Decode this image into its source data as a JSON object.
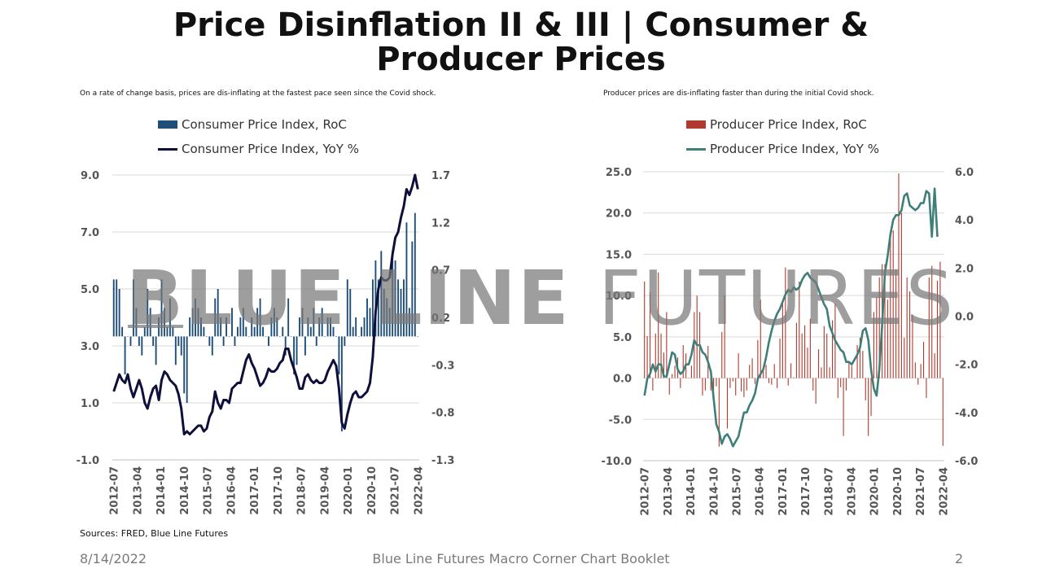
{
  "slide": {
    "title": "Price Disinflation II & III | Consumer & Producer Prices",
    "sources": "Sources: FRED, Blue Line Futures",
    "footer_date": "8/14/2022",
    "footer_center": "Blue Line Futures Macro Corner Chart Booklet",
    "page_number": "2",
    "watermark_bold": "BLUE LINE",
    "watermark_light": "FUTURES",
    "note_left": "On a rate of change basis, prices are dis-inflating at the fastest pace seen since the Covid shock.",
    "note_right": "Producer prices are dis-inflating faster than during the initial Covid shock."
  },
  "chart_data": [
    {
      "type": "bar+line",
      "legend": [
        "Consumer Price Index, RoC",
        "Consumer Price Index, YoY %"
      ],
      "colors": {
        "bar": "#1f4e79",
        "line": "#0f0f3c"
      },
      "left_axis": {
        "min": -1,
        "max": 9,
        "ticks": [
          "9.0",
          "7.0",
          "5.0",
          "3.0",
          "1.0",
          "-1.0"
        ],
        "series": "line"
      },
      "right_axis": {
        "min": -1.3,
        "max": 1.7,
        "ticks": [
          "1.7",
          "1.2",
          "0.7",
          "0.2",
          "-0.3",
          "-0.8",
          "-1.3"
        ],
        "series": "bar"
      },
      "x_labels": [
        "2012-07",
        "2013-04",
        "2014-01",
        "2014-10",
        "2015-07",
        "2016-04",
        "2017-01",
        "2017-10",
        "2018-07",
        "2019-04",
        "2020-01",
        "2020-10",
        "2021-07",
        "2022-04"
      ],
      "line_yoy": [
        1.4,
        1.7,
        2.0,
        1.8,
        1.7,
        2.0,
        1.5,
        1.2,
        1.5,
        1.8,
        1.5,
        1.0,
        0.8,
        1.2,
        1.5,
        1.6,
        1.1,
        1.8,
        2.1,
        2.0,
        1.8,
        1.7,
        1.6,
        1.3,
        0.8,
        -0.1,
        0.0,
        -0.1,
        0.0,
        0.1,
        0.2,
        0.2,
        0.0,
        0.1,
        0.5,
        0.7,
        1.4,
        1.0,
        0.8,
        1.1,
        1.1,
        1.0,
        1.5,
        1.6,
        1.7,
        1.7,
        2.1,
        2.5,
        2.7,
        2.4,
        2.2,
        1.9,
        1.6,
        1.7,
        1.9,
        2.2,
        2.1,
        2.1,
        2.2,
        2.4,
        2.5,
        2.9,
        2.9,
        2.5,
        2.2,
        1.9,
        1.5,
        1.5,
        1.9,
        2.0,
        1.8,
        1.7,
        1.8,
        1.7,
        1.7,
        1.8,
        2.1,
        2.3,
        2.5,
        2.3,
        1.5,
        0.3,
        0.1,
        0.6,
        1.0,
        1.3,
        1.4,
        1.2,
        1.2,
        1.3,
        1.4,
        1.7,
        2.6,
        4.2,
        5.0,
        5.4,
        5.3,
        5.3,
        5.4,
        6.2,
        6.8,
        7.0,
        7.5,
        7.9,
        8.5,
        8.3,
        8.6,
        9.0,
        8.5
      ],
      "bar_roc": [
        0.6,
        0.6,
        0.5,
        0.1,
        -0.4,
        0.0,
        -0.1,
        0.6,
        0.3,
        -0.1,
        -0.2,
        0.1,
        0.5,
        0.3,
        -0.1,
        -0.3,
        0.2,
        0.6,
        0.3,
        0.1,
        0.4,
        0.1,
        -0.3,
        -0.1,
        -0.2,
        -0.6,
        -0.7,
        0.2,
        0.3,
        0.4,
        0.3,
        0.2,
        0.1,
        0.0,
        -0.1,
        -0.2,
        0.4,
        0.5,
        0.2,
        -0.1,
        0.2,
        0.0,
        0.3,
        -0.1,
        0.1,
        0.2,
        0.3,
        0.1,
        0.0,
        0.2,
        0.1,
        0.3,
        0.4,
        0.1,
        0.0,
        -0.1,
        0.2,
        0.3,
        0.2,
        0.0,
        0.1,
        -0.2,
        0.4,
        0.0,
        -0.4,
        -0.3,
        0.2,
        0.3,
        -0.2,
        0.2,
        0.1,
        0.3,
        -0.1,
        0.2,
        0.3,
        0.0,
        0.2,
        0.2,
        0.1,
        0.0,
        -0.4,
        -1.0,
        -0.1,
        0.6,
        0.5,
        0.1,
        0.2,
        0.0,
        0.1,
        0.2,
        0.4,
        0.3,
        0.6,
        0.8,
        0.6,
        0.9,
        0.5,
        0.4,
        0.3,
        0.9,
        0.8,
        0.6,
        0.5,
        0.6,
        1.2,
        0.3,
        1.0,
        1.3,
        0.0
      ]
    },
    {
      "type": "bar+line",
      "legend": [
        "Producer Price Index, RoC",
        "Producer Price Index, YoY %"
      ],
      "colors": {
        "bar": "#b03a2e",
        "line": "#3f7f79"
      },
      "left_axis": {
        "min": -10,
        "max": 25,
        "ticks": [
          "25.0",
          "20.0",
          "15.0",
          "10.0",
          "5.0",
          "0.0",
          "-5.0",
          "-10.0"
        ],
        "series": "bar"
      },
      "right_axis": {
        "min": -6,
        "max": 6,
        "ticks": [
          "6.0",
          "4.0",
          "2.0",
          "0.0",
          "-2.0",
          "-4.0",
          "-6.0"
        ],
        "series": "line"
      },
      "x_labels": [
        "2012-07",
        "2013-04",
        "2014-01",
        "2014-10",
        "2015-07",
        "2016-04",
        "2017-01",
        "2017-10",
        "2018-07",
        "2019-04",
        "2020-01",
        "2020-10",
        "2021-07",
        "2022-04"
      ],
      "line_yoy": [
        -3.3,
        -2.6,
        -2.4,
        -2.0,
        -2.3,
        -2.0,
        -2.0,
        -2.5,
        -2.5,
        -2.0,
        -1.5,
        -1.6,
        -2.2,
        -2.4,
        -2.3,
        -2.0,
        -2.0,
        -1.6,
        -1.0,
        -1.2,
        -1.2,
        -1.5,
        -1.6,
        -1.9,
        -2.3,
        -3.4,
        -4.5,
        -4.8,
        -5.3,
        -5.0,
        -4.9,
        -5.1,
        -5.4,
        -5.2,
        -5.0,
        -4.5,
        -4.0,
        -4.0,
        -3.7,
        -3.5,
        -3.2,
        -2.6,
        -2.4,
        -2.2,
        -1.7,
        -1.1,
        -0.6,
        -0.2,
        0.1,
        0.3,
        0.6,
        0.9,
        1.1,
        1.0,
        1.2,
        1.1,
        1.2,
        1.5,
        1.7,
        1.8,
        1.6,
        1.5,
        1.4,
        1.1,
        0.8,
        0.5,
        0.3,
        -0.4,
        -0.7,
        -1.0,
        -1.2,
        -1.4,
        -1.5,
        -1.9,
        -1.9,
        -2.0,
        -1.8,
        -1.6,
        -1.3,
        -0.6,
        -0.5,
        -1.0,
        -2.2,
        -3.0,
        -3.3,
        -2.2,
        -0.4,
        1.8,
        2.5,
        3.4,
        4.0,
        4.2,
        4.2,
        4.4,
        5.0,
        5.1,
        4.6,
        4.5,
        4.4,
        4.5,
        4.7,
        4.7,
        5.2,
        5.1,
        3.3,
        5.3,
        3.3
      ],
      "bar_roc": [
        11.7,
        5.1,
        10.4,
        -1.5,
        5.4,
        12.8,
        5.4,
        3.1,
        8.0,
        -2.0,
        0.5,
        1.5,
        2.5,
        -1.2,
        4.0,
        3.0,
        0.0,
        1.5,
        8.0,
        10.0,
        8.0,
        -2.1,
        -1.5,
        3.9,
        -1.5,
        -2.5,
        -1.0,
        -8.3,
        5.6,
        10.0,
        -6.1,
        -1.2,
        -0.4,
        -2.1,
        3.0,
        -1.6,
        -2.3,
        -1.5,
        1.6,
        2.4,
        -0.7,
        4.6,
        9.5,
        1.2,
        1.6,
        -0.6,
        -0.8,
        1.7,
        -1.2,
        4.8,
        9.0,
        13.4,
        -0.9,
        1.8,
        0.1,
        6.7,
        11.7,
        5.4,
        6.4,
        3.7,
        7.2,
        -1.5,
        -3.1,
        3.5,
        1.3,
        6.3,
        5.4,
        1.3,
        7.0,
        9.0,
        -2.4,
        -1.1,
        -7.0,
        -1.5,
        1.9,
        1.5,
        -0.1,
        4.0,
        4.9,
        3.3,
        -2.7,
        -7.0,
        -4.6,
        8.0,
        9.8,
        12.2,
        13.8,
        13.8,
        9.5,
        16.9,
        17.9,
        13.2,
        24.8,
        20.0,
        4.9,
        12.2,
        10.5,
        7.7,
        1.9,
        -0.8,
        1.7,
        4.4,
        -2.4,
        12.2,
        13.6,
        3.0,
        11.8,
        14.1,
        -8.2
      ]
    }
  ]
}
